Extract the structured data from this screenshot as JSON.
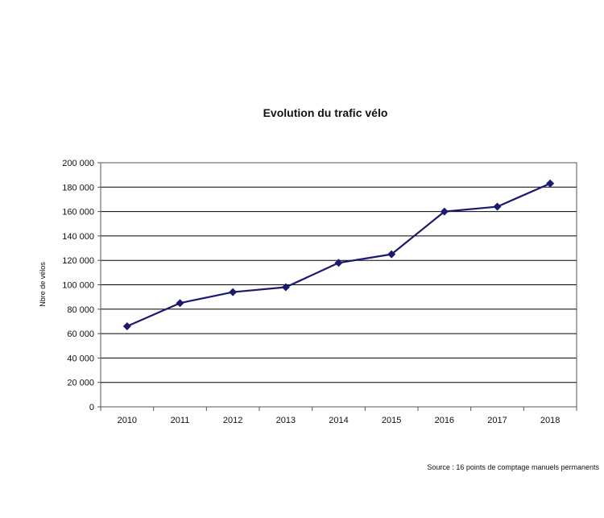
{
  "chart_data": {
    "type": "line",
    "title": "Evolution du trafic vélo",
    "xlabel": "",
    "ylabel": "Nbre de vélos",
    "categories": [
      "2010",
      "2011",
      "2012",
      "2013",
      "2014",
      "2015",
      "2016",
      "2017",
      "2018"
    ],
    "series": [
      {
        "values": [
          66000,
          85000,
          94000,
          98000,
          118000,
          125000,
          160000,
          164000,
          183000
        ],
        "color": "#1a1a6e",
        "marker": "diamond"
      }
    ],
    "ylim": [
      0,
      200000
    ],
    "yticks": [
      0,
      20000,
      40000,
      60000,
      80000,
      100000,
      120000,
      140000,
      160000,
      180000,
      200000
    ],
    "ytick_labels": [
      "0",
      "20 000",
      "40 000",
      "60 000",
      "80 000",
      "100 000",
      "120 000",
      "140 000",
      "160 000",
      "180 000",
      "200 000"
    ],
    "grid": "horizontal",
    "legend": "none",
    "source": "Source : 16 points de comptage manuels permanents"
  }
}
